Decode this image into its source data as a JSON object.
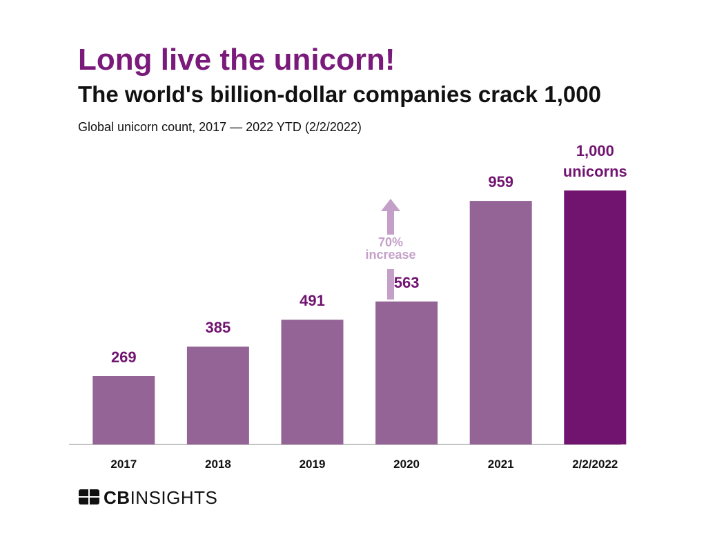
{
  "chart_data": {
    "type": "bar",
    "title": "Long live the unicorn!",
    "subtitle": "The world's billion-dollar companies crack 1,000",
    "description": "Global unicorn count, 2017 — 2022 YTD (2/2/2022)",
    "categories": [
      "2017",
      "2018",
      "2019",
      "2020",
      "2021",
      "2/2/2022"
    ],
    "values": [
      269,
      385,
      491,
      563,
      959,
      1000
    ],
    "value_labels": [
      "269",
      "385",
      "491",
      "563",
      "959",
      "1,000 unicorns"
    ],
    "colors": [
      "#946496",
      "#946496",
      "#946496",
      "#946496",
      "#946496",
      "#701470"
    ],
    "label_colors": [
      "#701470",
      "#701470",
      "#701470",
      "#701470",
      "#701470",
      "#701470"
    ],
    "annotation": "70% increase"
  },
  "logo": {
    "bold": "CB",
    "light": "INSIGHTS"
  }
}
